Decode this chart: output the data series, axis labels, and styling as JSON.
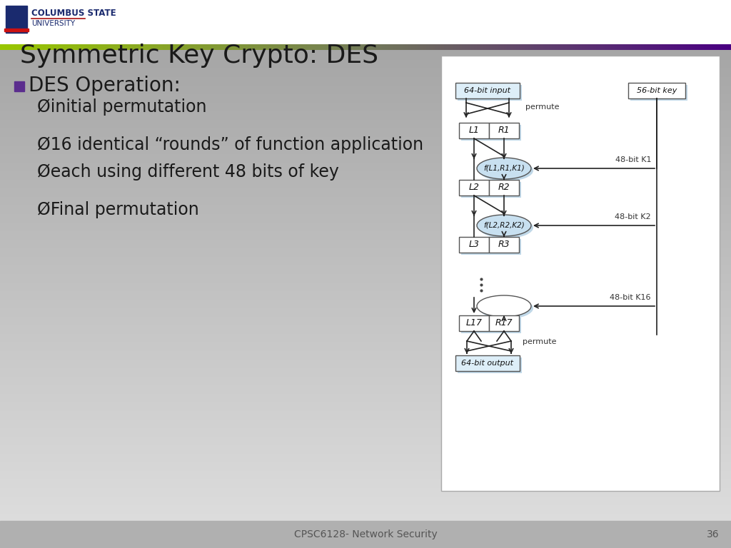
{
  "title": "Symmetric Key Crypto: DES",
  "title_fontsize": 26,
  "title_color": "#1a1a1a",
  "bullet_color": "#5b2d8e",
  "text_color": "#1a1a1a",
  "q_bullet_text": "DES Operation:",
  "q_bullet_fontsize": 20,
  "sub_bullets": [
    "Øinitial permutation",
    "",
    "Ø16 identical “rounds” of function application",
    "Øeach using different 48 bits of key",
    "",
    "ØFinal permutation"
  ],
  "sub_bullet_fontsize": 17,
  "footer_text": "CPSC6128- Network Security",
  "footer_page": "36",
  "footer_color": "#555555",
  "footer_fontsize": 10,
  "bg_top_color": "#e0e0e0",
  "bg_bottom_color": "#a0a0a0",
  "logo_text_line1": "COLUMBUS STATE",
  "logo_text_line2": "UNIVERSITY",
  "diagram_func_color": "#c8e0f0",
  "diagram_arrow_color": "#222222",
  "diagram_box_bg": "#ffffff",
  "diagram_input_color": "#ddeeff",
  "diagram_shadow_color": "#c0d8e8"
}
